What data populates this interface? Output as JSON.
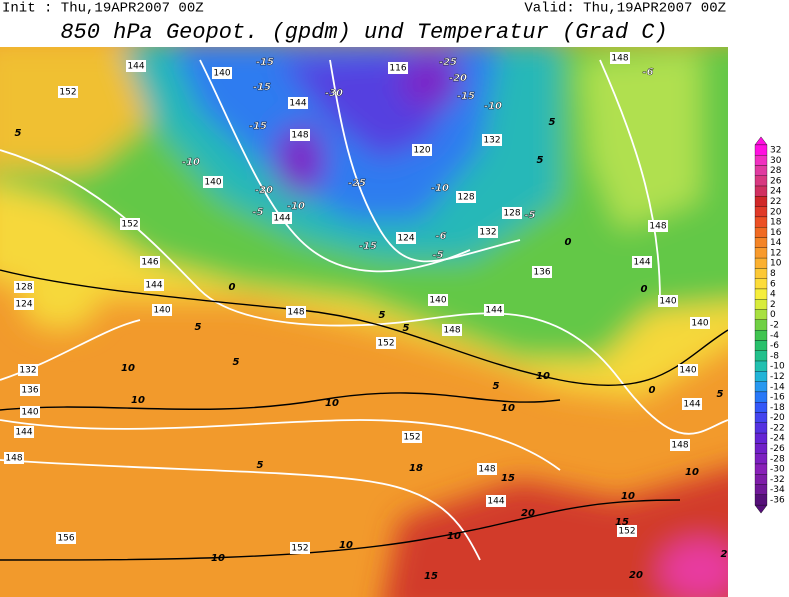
{
  "header": {
    "init": "Init : Thu,19APR2007 00Z",
    "valid": "Valid: Thu,19APR2007 00Z",
    "title": "850 hPa Geopot. (gpdm) und Temperatur (Grad C)"
  },
  "colorbar": {
    "ticks": [
      32,
      30,
      28,
      26,
      24,
      22,
      20,
      18,
      16,
      14,
      12,
      10,
      8,
      6,
      4,
      2,
      0,
      -2,
      -4,
      -6,
      -8,
      -10,
      -12,
      -14,
      -16,
      -18,
      -20,
      -22,
      -24,
      -26,
      -28,
      -30,
      -32,
      -34,
      -36
    ],
    "colors": [
      "#ff10e0",
      "#f030c0",
      "#e03aa0",
      "#d83880",
      "#d03060",
      "#d02828",
      "#e03a28",
      "#ec5024",
      "#f06a22",
      "#f48426",
      "#f89a2c",
      "#fbb030",
      "#fcc836",
      "#fcdc3a",
      "#f6ee3c",
      "#d8ec3c",
      "#a8e040",
      "#70d044",
      "#40c450",
      "#28c06c",
      "#22c08c",
      "#22c0b0",
      "#22b4d8",
      "#2898f0",
      "#2878f8",
      "#3458f8",
      "#4444ee",
      "#5432e0",
      "#6424d4",
      "#7020c8",
      "#7c20c0",
      "#8820b8",
      "#7e1ca8",
      "#701898",
      "#56107a"
    ]
  },
  "map": {
    "geopotential_labels": [
      "144",
      "140",
      "152",
      "144",
      "148",
      "116",
      "120",
      "132",
      "128",
      "128",
      "132",
      "124",
      "140",
      "152",
      "146",
      "144",
      "140",
      "148",
      "152",
      "140",
      "148",
      "144",
      "136",
      "144",
      "148",
      "140",
      "140",
      "140",
      "144",
      "148",
      "152",
      "148",
      "144",
      "152",
      "152",
      "156",
      "148",
      "144",
      "140",
      "136",
      "132",
      "128",
      "124",
      "148",
      "144"
    ],
    "temperature_labels": [
      "-15",
      "-15",
      "-30",
      "-25",
      "-20",
      "-15",
      "-10",
      "-15",
      "-10",
      "-20",
      "-10",
      "-5",
      "-25",
      "-10",
      "-15",
      "-6",
      "-5",
      "-5",
      "5",
      "5",
      "5",
      "0",
      "0",
      "-6",
      "0",
      "5",
      "5",
      "10",
      "10",
      "10",
      "5",
      "5",
      "10",
      "10",
      "15",
      "20",
      "20",
      "15",
      "10",
      "10",
      "10",
      "5",
      "15",
      "10",
      "10",
      "5",
      "0",
      "2",
      "18",
      "5"
    ]
  }
}
